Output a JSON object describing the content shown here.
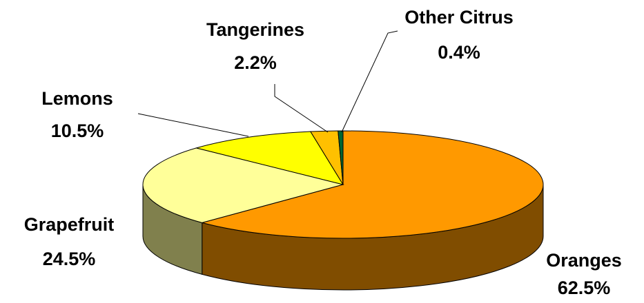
{
  "chart_data": {
    "type": "pie",
    "categories": [
      "Oranges",
      "Grapefruit",
      "Lemons",
      "Tangerines",
      "Other Citrus"
    ],
    "values": [
      62.5,
      24.5,
      10.5,
      2.2,
      0.4
    ],
    "value_labels": [
      "62.5%",
      "24.5%",
      "10.5%",
      "2.2%",
      "0.4%"
    ],
    "colors": [
      "#ff9900",
      "#ffff99",
      "#ffff00",
      "#ffc000",
      "#006633"
    ]
  }
}
